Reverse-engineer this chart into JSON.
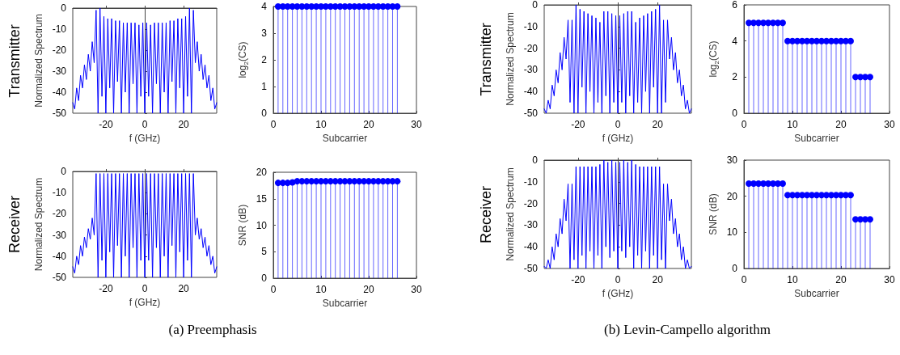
{
  "chart_data": [
    {
      "type": "line",
      "xlabel": "f (GHz)",
      "ylabel": "Normalized Spectrum",
      "annotations": [
        "Transmitter"
      ],
      "marker": "none",
      "line_style": "solid",
      "color": "#0000ff",
      "xlim": [
        -37,
        37
      ],
      "xticks": [
        -20,
        0,
        20
      ],
      "ylim": [
        -50,
        0
      ],
      "yticks": [
        -50,
        -40,
        -30,
        -20,
        -10,
        0
      ],
      "x": [
        -37,
        -36,
        -35,
        -34,
        -33,
        -32,
        -31,
        -30,
        -29,
        -28,
        -27,
        -26,
        -25,
        -24,
        -23,
        -22,
        -21,
        -20,
        -19,
        -18,
        -17,
        -16,
        -15,
        -14,
        -13,
        -12,
        -11,
        -10,
        -9,
        -8,
        -7,
        -6,
        -5,
        -4,
        -3,
        -2,
        -1,
        0,
        1,
        2,
        3,
        4,
        5,
        6,
        7,
        8,
        9,
        10,
        11,
        12,
        13,
        14,
        15,
        16,
        17,
        18,
        19,
        20,
        21,
        22,
        23,
        24,
        25,
        26,
        27,
        28,
        29,
        30,
        31,
        32,
        33,
        34,
        35,
        36,
        37
      ],
      "values": [
        -45,
        -48,
        -38,
        -44,
        -32,
        -38,
        -27,
        -34,
        -22,
        -30,
        -16,
        -26,
        -1,
        -50,
        0,
        -42,
        -4,
        -50,
        -5,
        -38,
        -5,
        -50,
        -6,
        -35,
        -6,
        -50,
        -7,
        -40,
        -7,
        -50,
        -7,
        -36,
        -7,
        -50,
        -8,
        -42,
        -7,
        -50,
        -7,
        -42,
        -8,
        -50,
        -7,
        -36,
        -7,
        -50,
        -7,
        -40,
        -7,
        -50,
        -6,
        -35,
        -6,
        -50,
        -5,
        -38,
        -5,
        -50,
        -4,
        -42,
        0,
        -50,
        -1,
        -26,
        -16,
        -30,
        -22,
        -34,
        -27,
        -38,
        -32,
        -44,
        -38,
        -48,
        -45
      ]
    },
    {
      "type": "lollipop",
      "xlabel": "Subcarrier",
      "ylabel": "log$_{2}$(CS)",
      "marker": "circle",
      "color": "#0000ff",
      "xlim": [
        0,
        30
      ],
      "xticks": [
        0,
        10,
        20,
        30
      ],
      "ylim": [
        0,
        4
      ],
      "yticks": [
        0,
        1,
        2,
        3,
        4
      ],
      "x": [
        1,
        2,
        3,
        4,
        5,
        6,
        7,
        8,
        9,
        10,
        11,
        12,
        13,
        14,
        15,
        16,
        17,
        18,
        19,
        20,
        21,
        22,
        23,
        24,
        25,
        26
      ],
      "values": [
        4,
        4,
        4,
        4,
        4,
        4,
        4,
        4,
        4,
        4,
        4,
        4,
        4,
        4,
        4,
        4,
        4,
        4,
        4,
        4,
        4,
        4,
        4,
        4,
        4,
        4
      ]
    },
    {
      "type": "line",
      "xlabel": "f (GHz)",
      "ylabel": "Normalized Spectrum",
      "annotations": [
        "Transmitter"
      ],
      "marker": "none",
      "line_style": "solid",
      "color": "#0000ff",
      "xlim": [
        -37,
        37
      ],
      "xticks": [
        -20,
        0,
        20
      ],
      "ylim": [
        -50,
        0
      ],
      "yticks": [
        -50,
        -40,
        -30,
        -20,
        -10,
        0
      ],
      "x": [
        -37,
        -36,
        -35,
        -34,
        -33,
        -32,
        -31,
        -30,
        -29,
        -28,
        -27,
        -26,
        -25,
        -24,
        -23,
        -22,
        -21,
        -20,
        -19,
        -18,
        -17,
        -16,
        -15,
        -14,
        -13,
        -12,
        -11,
        -10,
        -9,
        -8,
        -7,
        -6,
        -5,
        -4,
        -3,
        -2,
        -1,
        0,
        1,
        2,
        3,
        4,
        5,
        6,
        7,
        8,
        9,
        10,
        11,
        12,
        13,
        14,
        15,
        16,
        17,
        18,
        19,
        20,
        21,
        22,
        23,
        24,
        25,
        26,
        27,
        28,
        29,
        30,
        31,
        32,
        33,
        34,
        35,
        36,
        37
      ],
      "values": [
        -48,
        -50,
        -44,
        -48,
        -37,
        -42,
        -30,
        -36,
        -22,
        -30,
        -15,
        -25,
        -7,
        -45,
        -7,
        -50,
        0,
        -50,
        -2,
        -38,
        -3,
        -50,
        -4,
        -40,
        -5,
        -50,
        -6,
        -45,
        -8,
        -50,
        -3,
        -42,
        -3,
        -50,
        -4,
        -45,
        -5,
        -50,
        -5,
        -45,
        -4,
        -50,
        -3,
        -42,
        -3,
        -50,
        -8,
        -45,
        -6,
        -50,
        -5,
        -40,
        -4,
        -50,
        -3,
        -38,
        -2,
        -50,
        0,
        -50,
        -7,
        -45,
        -7,
        -25,
        -15,
        -30,
        -22,
        -36,
        -30,
        -42,
        -37,
        -48,
        -44,
        -50,
        -48
      ]
    },
    {
      "type": "lollipop",
      "xlabel": "Subcarrier",
      "ylabel": "log$_{2}$(CS)",
      "marker": "circle",
      "color": "#0000ff",
      "xlim": [
        0,
        30
      ],
      "xticks": [
        0,
        10,
        20,
        30
      ],
      "ylim": [
        0,
        6
      ],
      "yticks": [
        0,
        2,
        4,
        6
      ],
      "x": [
        1,
        2,
        3,
        4,
        5,
        6,
        7,
        8,
        9,
        10,
        11,
        12,
        13,
        14,
        15,
        16,
        17,
        18,
        19,
        20,
        21,
        22,
        23,
        24,
        25,
        26
      ],
      "values": [
        5,
        5,
        5,
        5,
        5,
        5,
        5,
        5,
        4,
        4,
        4,
        4,
        4,
        4,
        4,
        4,
        4,
        4,
        4,
        4,
        4,
        4,
        2,
        2,
        2,
        2
      ]
    },
    {
      "type": "line",
      "xlabel": "f (GHz)",
      "ylabel": "Normalized Spectrum",
      "annotations": [
        "Receiver",
        "(a) Preemphasis"
      ],
      "marker": "none",
      "line_style": "solid",
      "color": "#0000ff",
      "xlim": [
        -37,
        37
      ],
      "xticks": [
        -20,
        0,
        20
      ],
      "ylim": [
        -50,
        0
      ],
      "yticks": [
        -50,
        -40,
        -30,
        -20,
        -10,
        0
      ],
      "x": [
        -37,
        -36,
        -35,
        -34,
        -33,
        -32,
        -31,
        -30,
        -29,
        -28,
        -27,
        -26,
        -25,
        -24,
        -23,
        -22,
        -21,
        -20,
        -19,
        -18,
        -17,
        -16,
        -15,
        -14,
        -13,
        -12,
        -11,
        -10,
        -9,
        -8,
        -7,
        -6,
        -5,
        -4,
        -3,
        -2,
        -1,
        0,
        1,
        2,
        3,
        4,
        5,
        6,
        7,
        8,
        9,
        10,
        11,
        12,
        13,
        14,
        15,
        16,
        17,
        18,
        19,
        20,
        21,
        22,
        23,
        24,
        25,
        26,
        27,
        28,
        29,
        30,
        31,
        32,
        33,
        34,
        35,
        36,
        37
      ],
      "values": [
        -45,
        -48,
        -40,
        -44,
        -35,
        -40,
        -31,
        -36,
        -27,
        -32,
        -22,
        -30,
        -1,
        -50,
        -1,
        -42,
        -1,
        -50,
        -1,
        -38,
        -1,
        -50,
        -1,
        -35,
        -1,
        -50,
        -1,
        -40,
        -1,
        -50,
        -1,
        -36,
        -1,
        -50,
        -1,
        -42,
        -1,
        -50,
        -1,
        -42,
        -1,
        -50,
        -1,
        -36,
        -1,
        -50,
        -1,
        -40,
        -1,
        -50,
        -1,
        -35,
        -1,
        -50,
        -1,
        -38,
        -1,
        -50,
        -1,
        -42,
        -1,
        -50,
        -1,
        -30,
        -22,
        -32,
        -27,
        -36,
        -31,
        -40,
        -35,
        -44,
        -40,
        -48,
        -45
      ]
    },
    {
      "type": "lollipop",
      "xlabel": "Subcarrier",
      "ylabel": "SNR (dB)",
      "marker": "circle",
      "color": "#0000ff",
      "xlim": [
        0,
        30
      ],
      "xticks": [
        0,
        10,
        20,
        30
      ],
      "ylim": [
        0,
        20
      ],
      "yticks": [
        0,
        5,
        10,
        15,
        20
      ],
      "x": [
        1,
        2,
        3,
        4,
        5,
        6,
        7,
        8,
        9,
        10,
        11,
        12,
        13,
        14,
        15,
        16,
        17,
        18,
        19,
        20,
        21,
        22,
        23,
        24,
        25,
        26
      ],
      "values": [
        18,
        18,
        18,
        18.1,
        18.3,
        18.3,
        18.3,
        18.3,
        18.3,
        18.3,
        18.3,
        18.3,
        18.3,
        18.3,
        18.3,
        18.3,
        18.3,
        18.3,
        18.3,
        18.3,
        18.3,
        18.3,
        18.3,
        18.3,
        18.3,
        18.3
      ]
    },
    {
      "type": "line",
      "xlabel": "f (GHz)",
      "ylabel": "Normalized Spectrum",
      "annotations": [
        "Receiver",
        "(b) Levin-Campello algorithm"
      ],
      "marker": "none",
      "line_style": "solid",
      "color": "#0000ff",
      "xlim": [
        -37,
        37
      ],
      "xticks": [
        -20,
        0,
        20
      ],
      "ylim": [
        -50,
        0
      ],
      "yticks": [
        -50,
        -40,
        -30,
        -20,
        -10,
        0
      ],
      "x": [
        -37,
        -36,
        -35,
        -34,
        -33,
        -32,
        -31,
        -30,
        -29,
        -28,
        -27,
        -26,
        -25,
        -24,
        -23,
        -22,
        -21,
        -20,
        -19,
        -18,
        -17,
        -16,
        -15,
        -14,
        -13,
        -12,
        -11,
        -10,
        -9,
        -8,
        -7,
        -6,
        -5,
        -4,
        -3,
        -2,
        -1,
        0,
        1,
        2,
        3,
        4,
        5,
        6,
        7,
        8,
        9,
        10,
        11,
        12,
        13,
        14,
        15,
        16,
        17,
        18,
        19,
        20,
        21,
        22,
        23,
        24,
        25,
        26,
        27,
        28,
        29,
        30,
        31,
        32,
        33,
        34,
        35,
        36,
        37
      ],
      "values": [
        -49,
        -50,
        -46,
        -50,
        -40,
        -46,
        -34,
        -40,
        -27,
        -34,
        -18,
        -28,
        -11,
        -50,
        -11,
        -46,
        -3,
        -50,
        -3,
        -44,
        -3,
        -50,
        -3,
        -42,
        -3,
        -50,
        -3,
        -44,
        -2,
        -50,
        0,
        -40,
        -1,
        -45,
        0,
        -42,
        -1,
        -50,
        -1,
        -42,
        0,
        -45,
        -1,
        -40,
        0,
        -50,
        -2,
        -44,
        -3,
        -50,
        -3,
        -42,
        -3,
        -50,
        -3,
        -44,
        -3,
        -50,
        -3,
        -46,
        -11,
        -50,
        -11,
        -28,
        -18,
        -34,
        -27,
        -40,
        -34,
        -46,
        -40,
        -50,
        -46,
        -50,
        -49
      ]
    },
    {
      "type": "lollipop",
      "xlabel": "Subcarrier",
      "ylabel": "SNR (dB)",
      "marker": "circle",
      "color": "#0000ff",
      "xlim": [
        0,
        30
      ],
      "xticks": [
        0,
        10,
        20,
        30
      ],
      "ylim": [
        0,
        30
      ],
      "yticks": [
        0,
        10,
        20,
        30
      ],
      "x": [
        1,
        2,
        3,
        4,
        5,
        6,
        7,
        8,
        9,
        10,
        11,
        12,
        13,
        14,
        15,
        16,
        17,
        18,
        19,
        20,
        21,
        22,
        23,
        24,
        25,
        26
      ],
      "values": [
        23.5,
        23.5,
        23.5,
        23.5,
        23.5,
        23.5,
        23.5,
        23.5,
        20.3,
        20.3,
        20.3,
        20.3,
        20.3,
        20.3,
        20.3,
        20.3,
        20.3,
        20.3,
        20.3,
        20.3,
        20.3,
        20.3,
        13.6,
        13.6,
        13.6,
        13.6
      ]
    }
  ]
}
